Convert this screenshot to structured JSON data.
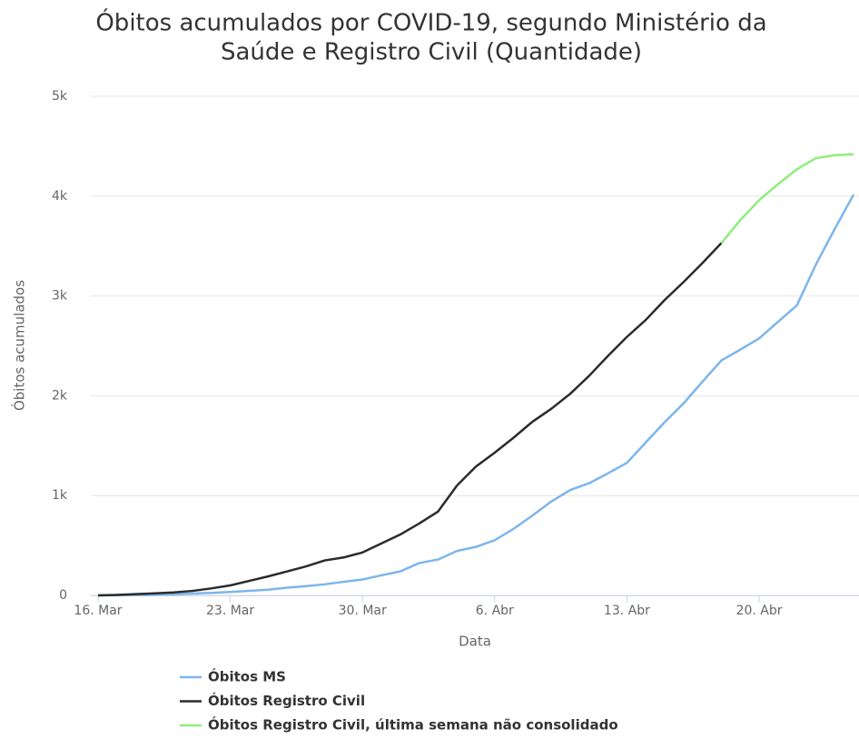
{
  "chart_data": {
    "type": "line",
    "title": [
      "Óbitos acumulados por COVID-19, segundo Ministério da",
      "Saúde e Registro Civil (Quantidade)"
    ],
    "x_label": "Data",
    "y_label": "Óbitos acumulados",
    "categories": [
      "16. Mar",
      null,
      null,
      null,
      null,
      null,
      null,
      "23. Mar",
      null,
      null,
      null,
      null,
      null,
      null,
      "30. Mar",
      null,
      null,
      null,
      null,
      null,
      null,
      "6. Abr",
      null,
      null,
      null,
      null,
      null,
      null,
      "13. Abr",
      null,
      null,
      null,
      null,
      null,
      null,
      "20. Abr",
      null,
      null,
      null,
      null,
      null
    ],
    "series": [
      {
        "name": "Óbitos MS",
        "color": "#7cb5ec",
        "values": [
          0,
          1,
          4,
          7,
          11,
          18,
          25,
          34,
          46,
          57,
          77,
          92,
          111,
          136,
          159,
          201,
          240,
          324,
          359,
          445,
          486,
          553,
          667,
          800,
          941,
          1056,
          1124,
          1223,
          1328,
          1532,
          1736,
          1924,
          2141,
          2354,
          2462,
          2575,
          2741,
          2906,
          3313,
          3670,
          4016
        ]
      },
      {
        "name": "Óbitos Registro Civil",
        "color": "#2b2b2b",
        "values": [
          0,
          5,
          12,
          20,
          30,
          45,
          70,
          100,
          145,
          190,
          240,
          290,
          350,
          380,
          430,
          520,
          610,
          720,
          840,
          1100,
          1290,
          1430,
          1580,
          1740,
          1870,
          2020,
          2200,
          2400,
          2590,
          2760,
          2960,
          3140,
          3330,
          3530,
          null,
          null,
          null,
          null,
          null,
          null,
          null
        ]
      },
      {
        "name": "Óbitos Registro Civil, última semana não consolidado",
        "color": "#90ed7d",
        "values": [
          null,
          null,
          null,
          null,
          null,
          null,
          null,
          null,
          null,
          null,
          null,
          null,
          null,
          null,
          null,
          null,
          null,
          null,
          null,
          null,
          null,
          null,
          null,
          null,
          null,
          null,
          null,
          null,
          null,
          null,
          null,
          null,
          null,
          3530,
          3760,
          3960,
          4120,
          4270,
          4380,
          4410,
          4420
        ]
      }
    ],
    "ylim": [
      0,
      5000
    ],
    "yticks": [
      0,
      {
        "value": 1000,
        "label": "1k"
      },
      {
        "value": 2000,
        "label": "2k"
      },
      {
        "value": 3000,
        "label": "3k"
      },
      {
        "value": 4000,
        "label": "4k"
      },
      {
        "value": 5000,
        "label": "5k"
      }
    ],
    "grid": true,
    "legend": "bottom"
  }
}
